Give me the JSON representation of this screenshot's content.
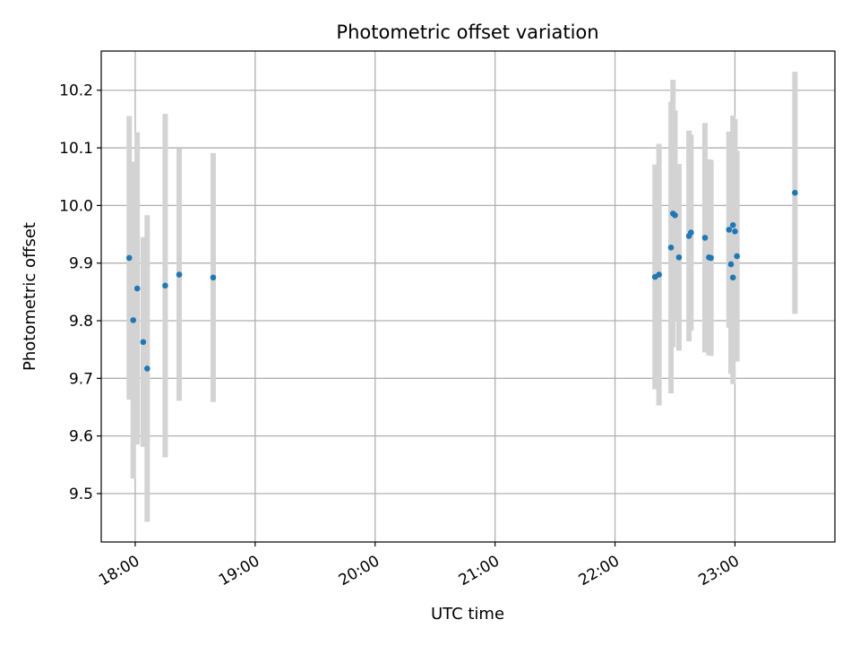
{
  "chart_data": {
    "type": "scatter",
    "title": "Photometric offset variation",
    "xlabel": "UTC time",
    "ylabel": "Photometric offset",
    "xlim": [
      "17:43",
      "23:50"
    ],
    "ylim": [
      9.416,
      10.268
    ],
    "grid": true,
    "x_ticks": [
      "18:00",
      "19:00",
      "20:00",
      "21:00",
      "22:00",
      "23:00"
    ],
    "y_ticks": [
      9.5,
      9.6,
      9.7,
      9.8,
      9.9,
      10.0,
      10.1,
      10.2
    ],
    "point_color": "#1f77b4",
    "errorbar_color": "#d3d3d3",
    "points": [
      {
        "x": "17:57",
        "y": 9.909,
        "yerr": 0.246
      },
      {
        "x": "17:59",
        "y": 9.801,
        "yerr": 0.275
      },
      {
        "x": "18:01",
        "y": 9.856,
        "yerr": 0.271
      },
      {
        "x": "18:04",
        "y": 9.763,
        "yerr": 0.182
      },
      {
        "x": "18:06",
        "y": 9.717,
        "yerr": 0.266
      },
      {
        "x": "18:15",
        "y": 9.861,
        "yerr": 0.298
      },
      {
        "x": "18:22",
        "y": 9.88,
        "yerr": 0.219
      },
      {
        "x": "18:39",
        "y": 9.875,
        "yerr": 0.216
      },
      {
        "x": "22:20",
        "y": 9.876,
        "yerr": 0.195
      },
      {
        "x": "22:22",
        "y": 9.88,
        "yerr": 0.227
      },
      {
        "x": "22:28",
        "y": 9.927,
        "yerr": 0.253
      },
      {
        "x": "22:29",
        "y": 9.986,
        "yerr": 0.232
      },
      {
        "x": "22:30",
        "y": 9.983,
        "yerr": 0.182
      },
      {
        "x": "22:32",
        "y": 9.91,
        "yerr": 0.162
      },
      {
        "x": "22:37",
        "y": 9.947,
        "yerr": 0.183
      },
      {
        "x": "22:38",
        "y": 9.953,
        "yerr": 0.17
      },
      {
        "x": "22:45",
        "y": 9.944,
        "yerr": 0.199
      },
      {
        "x": "22:47",
        "y": 9.91,
        "yerr": 0.17
      },
      {
        "x": "22:48",
        "y": 9.909,
        "yerr": 0.17
      },
      {
        "x": "22:57",
        "y": 9.958,
        "yerr": 0.17
      },
      {
        "x": "22:58",
        "y": 9.898,
        "yerr": 0.19
      },
      {
        "x": "22:59",
        "y": 9.875,
        "yerr": 0.185
      },
      {
        "x": "22:59",
        "y": 9.966,
        "yerr": 0.19
      },
      {
        "x": "23:00",
        "y": 9.955,
        "yerr": 0.195
      },
      {
        "x": "23:01",
        "y": 9.912,
        "yerr": 0.183
      },
      {
        "x": "23:30",
        "y": 10.022,
        "yerr": 0.21
      }
    ]
  }
}
